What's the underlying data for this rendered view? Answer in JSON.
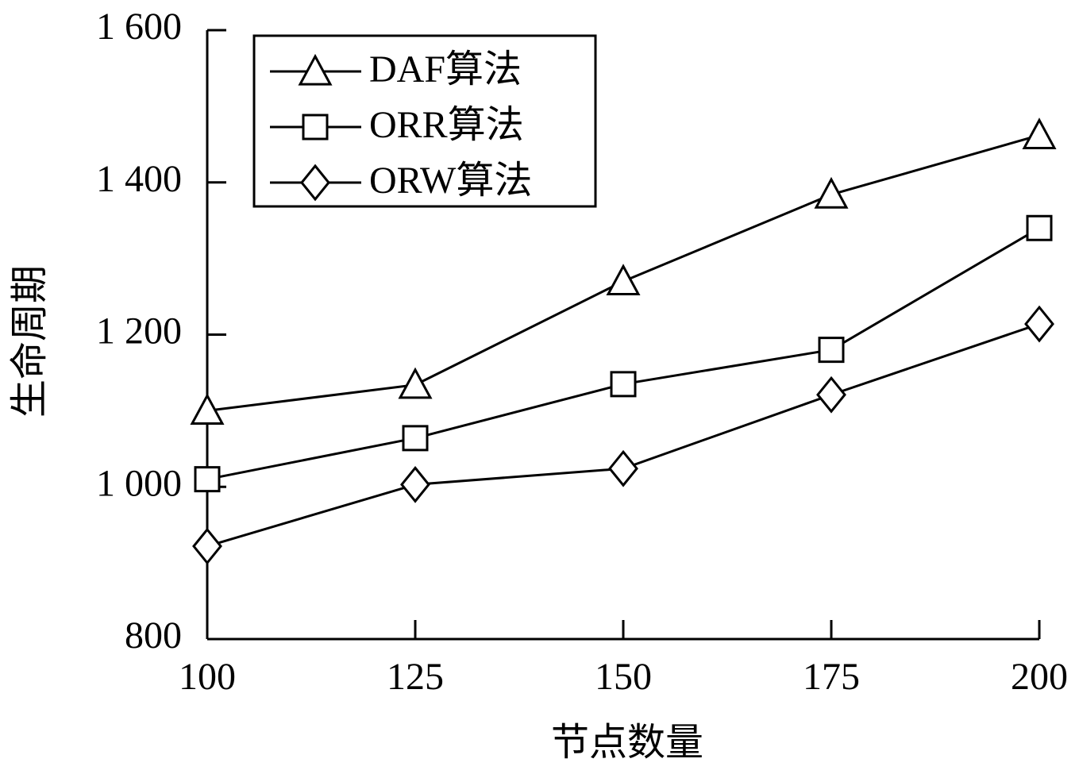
{
  "chart_data": {
    "type": "line",
    "x_label": "节点数量",
    "y_label": "生命周期",
    "x": [
      100,
      125,
      150,
      175,
      200
    ],
    "series": [
      {
        "name": "DAF算法",
        "color": "#000000",
        "marker": "triangle",
        "values": [
          1100,
          1134,
          1270,
          1384,
          1462
        ]
      },
      {
        "name": "ORR算法",
        "color": "#000000",
        "marker": "square",
        "values": [
          1010,
          1064,
          1135,
          1180,
          1340
        ]
      },
      {
        "name": "ORW算法",
        "color": "#000000",
        "marker": "diamond",
        "values": [
          922,
          1003,
          1024,
          1121,
          1214
        ]
      }
    ],
    "xlim": [
      100,
      200
    ],
    "xticks": [
      100,
      125,
      150,
      175,
      200
    ],
    "ylim": [
      800,
      1600
    ],
    "yticks": [
      800,
      {
        "value": 1000,
        "label": "1 000"
      },
      {
        "value": 1200,
        "label": "1 200"
      },
      {
        "value": 1400,
        "label": "1 400"
      },
      {
        "value": 1600,
        "label": "1 600"
      }
    ],
    "grid": false,
    "legend_position": "upper-left"
  }
}
